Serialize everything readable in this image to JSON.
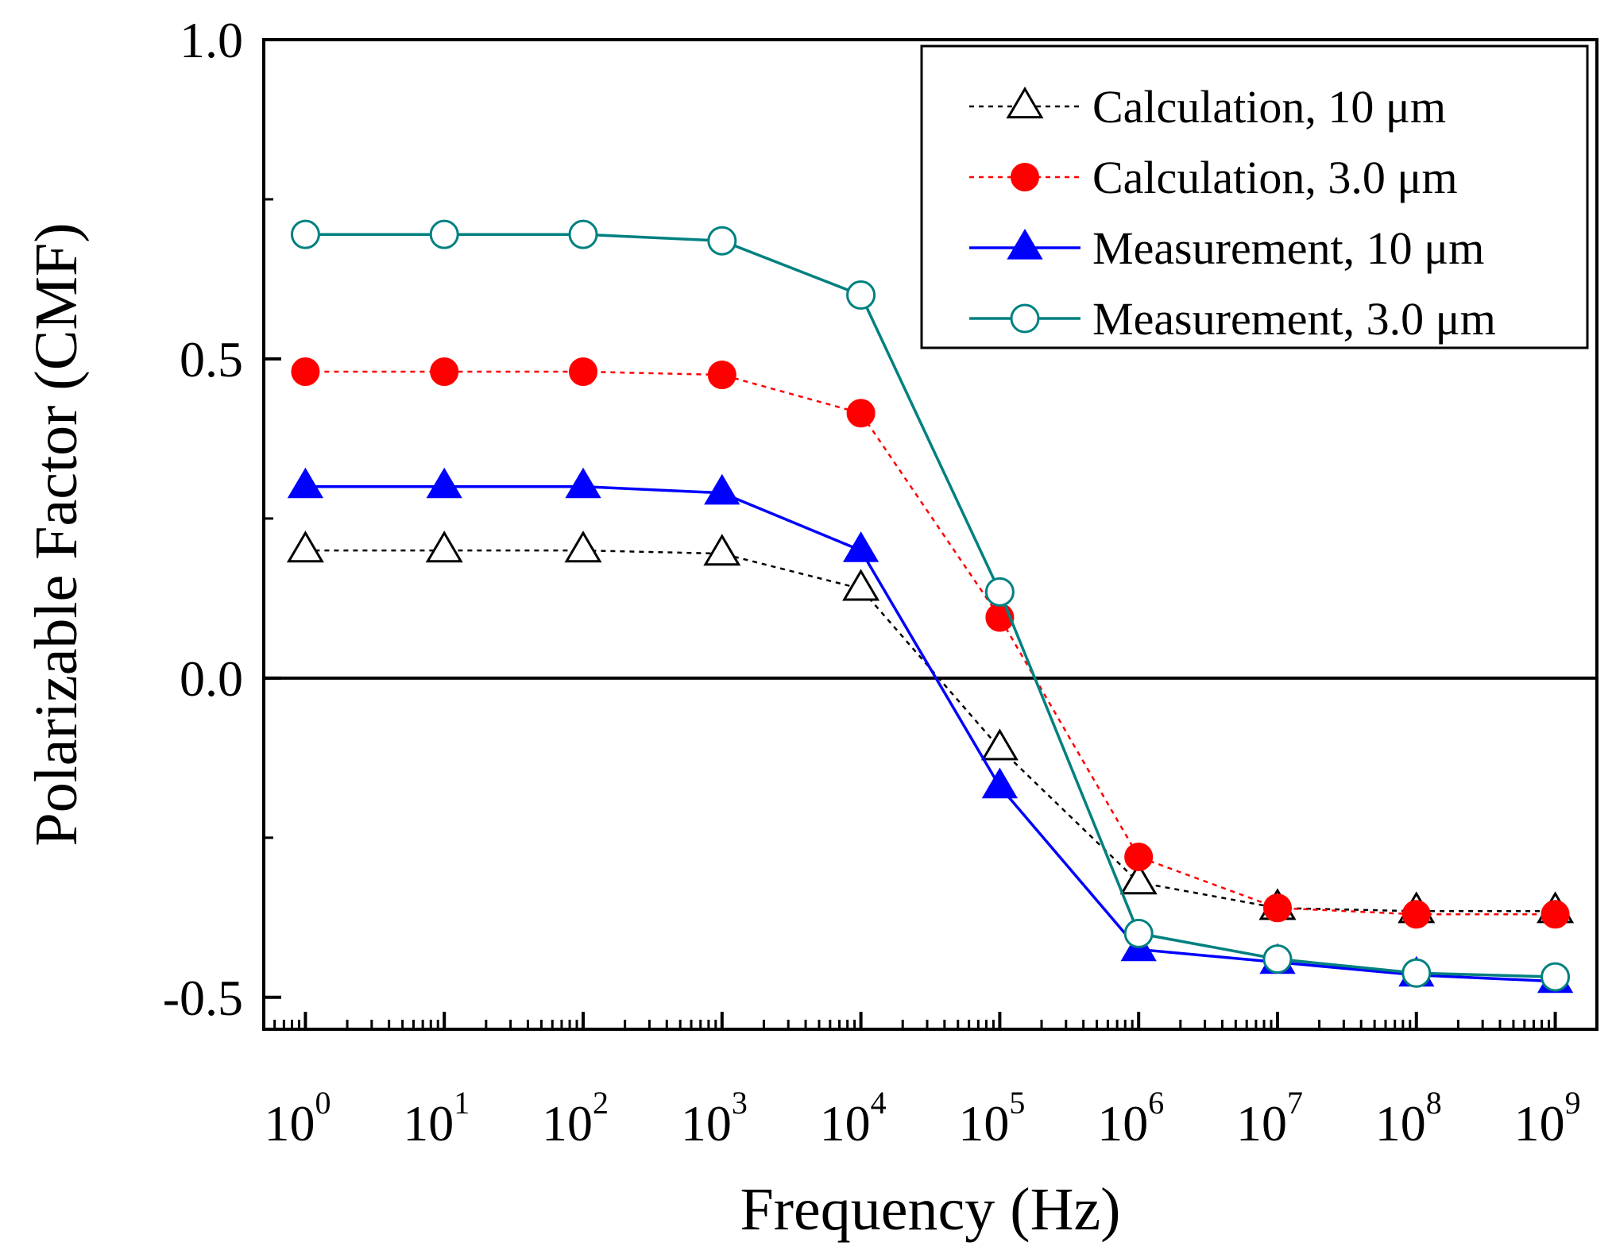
{
  "chart_data": {
    "type": "line",
    "title": "",
    "xlabel": "Frequency (Hz)",
    "ylabel": "Polarizable Factor (CMF)",
    "xscale": "log",
    "xlim_exponents": [
      -0.3,
      9.3
    ],
    "ylim": [
      -0.55,
      1.0
    ],
    "x_tick_base": "10",
    "x_tick_exponents": [
      "0",
      "1",
      "2",
      "3",
      "4",
      "5",
      "6",
      "7",
      "8",
      "9"
    ],
    "y_ticks": [
      {
        "value": 1.0,
        "label": "1.0"
      },
      {
        "value": 0.5,
        "label": "0.5"
      },
      {
        "value": 0.0,
        "label": "0.0"
      },
      {
        "value": -0.5,
        "label": "-0.5"
      }
    ],
    "zero_line": true,
    "legend_position": "top-right",
    "x": [
      1,
      10,
      100,
      1000,
      10000,
      100000,
      1000000,
      10000000,
      100000000,
      1000000000
    ],
    "series": [
      {
        "name": "Calculation, 10 μm",
        "color": "#000000",
        "line_style": "dotted",
        "marker": "triangle-open",
        "values": [
          0.2,
          0.2,
          0.2,
          0.195,
          0.14,
          -0.11,
          -0.32,
          -0.36,
          -0.365,
          -0.365
        ]
      },
      {
        "name": "Calculation, 3.0 μm",
        "color": "#ff0000",
        "line_style": "dotted",
        "marker": "circle-filled",
        "values": [
          0.48,
          0.48,
          0.48,
          0.475,
          0.415,
          0.095,
          -0.28,
          -0.36,
          -0.37,
          -0.37
        ]
      },
      {
        "name": "Measurement, 10 μm",
        "color": "#0000ff",
        "line_style": "solid",
        "marker": "triangle-filled",
        "values": [
          0.3,
          0.3,
          0.3,
          0.29,
          0.2,
          -0.17,
          -0.425,
          -0.445,
          -0.465,
          -0.475
        ]
      },
      {
        "name": "Measurement, 3.0 μm",
        "color": "#008080",
        "line_style": "solid",
        "marker": "circle-open",
        "values": [
          0.695,
          0.695,
          0.695,
          0.685,
          0.6,
          0.135,
          -0.4,
          -0.44,
          -0.462,
          -0.468
        ]
      }
    ]
  }
}
